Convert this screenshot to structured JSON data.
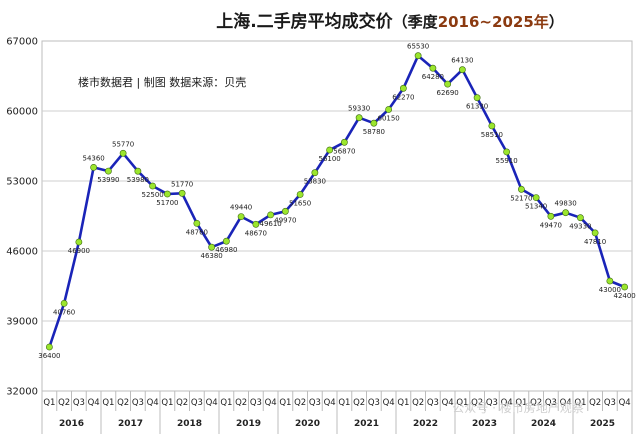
{
  "chart_data": {
    "type": "line",
    "title": "上海.二手房平均成交价",
    "subtitle_prefix": "（季度",
    "subtitle_range": "2016~2025年",
    "subtitle_suffix": "）",
    "source_note": "楼市数据君 | 制图   数据来源：贝壳",
    "watermark": "公众号 · 楼市房地产观察",
    "ylim": [
      32000,
      67000
    ],
    "yticks": [
      32000,
      39000,
      46000,
      53000,
      60000,
      67000
    ],
    "years": [
      "2016",
      "2017",
      "2018",
      "2019",
      "2020",
      "2021",
      "2022",
      "2023",
      "2024",
      "2025"
    ],
    "quarters": [
      "Q1",
      "Q2",
      "Q3",
      "Q4"
    ],
    "grid": true,
    "line_color": "#1a24b8",
    "marker_color": "#9be62d",
    "series": [
      {
        "values": [
          36400,
          40760,
          46900,
          54360,
          53990,
          55770,
          53980,
          52500,
          51700,
          51770,
          48760,
          46380,
          46980,
          49440,
          48670,
          49610,
          49970,
          51650,
          53830,
          56100,
          56870,
          59330,
          58780,
          60150,
          62270,
          65530,
          64280,
          62690,
          64130,
          61330,
          58510,
          55910,
          52170,
          51340,
          49470,
          49830,
          49330,
          47810,
          43000,
          42400
        ],
        "labels": [
          "36400",
          "40760",
          "46900",
          "54360",
          "53990",
          "55770",
          "53980",
          "52500",
          "51700",
          "51770",
          "48760",
          "46380",
          "46980",
          "49440",
          "48670",
          "49610",
          "49970",
          "51650",
          "53830",
          "56100",
          "56870",
          "59330",
          "58780",
          "60150",
          "62270",
          "65530",
          "64280",
          "62690",
          "64130",
          "61330",
          "58510",
          "55910",
          "52170",
          "51340",
          "49470",
          "49830",
          "49330",
          "47810",
          "43000",
          "42400"
        ]
      }
    ]
  }
}
